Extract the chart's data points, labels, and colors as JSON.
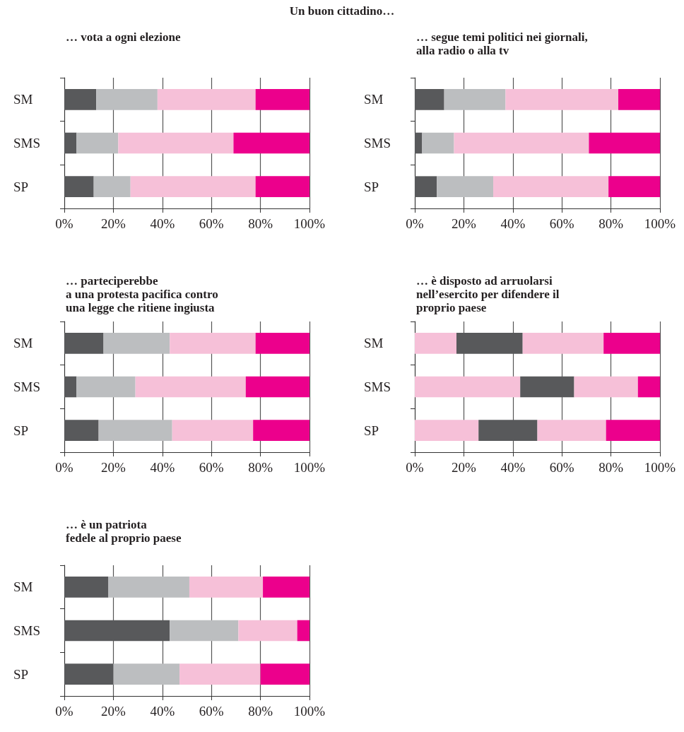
{
  "chart_data": [
    {
      "type": "bar",
      "title": "… vota a ogni elezione",
      "annotations": [
        "Un buon cittadino…"
      ],
      "orientation": "horizontal",
      "stacked": true,
      "grid": "x",
      "categories": [
        "SM",
        "SMS",
        "SP"
      ],
      "xlim": [
        0,
        100
      ],
      "xticks": [
        {
          "value": 0,
          "label": "0%"
        },
        {
          "value": 20,
          "label": "20%"
        },
        {
          "value": 40,
          "label": "40%"
        },
        {
          "value": 60,
          "label": "60%"
        },
        {
          "value": 80,
          "label": "80%"
        },
        {
          "value": 100,
          "label": "100%"
        }
      ],
      "series": [
        {
          "color": "#58595b",
          "values": [
            13,
            5,
            12
          ]
        },
        {
          "color": "#bcbec0",
          "values": [
            25,
            17,
            15
          ]
        },
        {
          "color": "#f6c0d8",
          "values": [
            40,
            47,
            51
          ]
        },
        {
          "color": "#ec008c",
          "values": [
            22,
            31,
            22
          ]
        }
      ]
    },
    {
      "type": "bar",
      "title": "… segue temi politici nei giornali,\nalla radio o alla tv",
      "orientation": "horizontal",
      "stacked": true,
      "grid": "x",
      "categories": [
        "SM",
        "SMS",
        "SP"
      ],
      "xlim": [
        0,
        100
      ],
      "xticks": [
        {
          "value": 0,
          "label": "0%"
        },
        {
          "value": 20,
          "label": "20%"
        },
        {
          "value": 40,
          "label": "40%"
        },
        {
          "value": 60,
          "label": "60%"
        },
        {
          "value": 80,
          "label": "80%"
        },
        {
          "value": 100,
          "label": "100%"
        }
      ],
      "series": [
        {
          "color": "#58595b",
          "values": [
            12,
            3,
            9
          ]
        },
        {
          "color": "#bcbec0",
          "values": [
            25,
            13,
            23
          ]
        },
        {
          "color": "#f6c0d8",
          "values": [
            46,
            55,
            47
          ]
        },
        {
          "color": "#ec008c",
          "values": [
            17,
            29,
            21
          ]
        }
      ]
    },
    {
      "type": "bar",
      "title": "… parteciperebbe\na una protesta pacifica contro\nuna legge che ritiene ingiusta",
      "orientation": "horizontal",
      "stacked": true,
      "grid": "x",
      "categories": [
        "SM",
        "SMS",
        "SP"
      ],
      "xlim": [
        0,
        100
      ],
      "xticks": [
        {
          "value": 0,
          "label": "0%"
        },
        {
          "value": 20,
          "label": "20%"
        },
        {
          "value": 40,
          "label": "40%"
        },
        {
          "value": 60,
          "label": "60%"
        },
        {
          "value": 80,
          "label": "80%"
        },
        {
          "value": 100,
          "label": "100%"
        }
      ],
      "series": [
        {
          "color": "#58595b",
          "values": [
            16,
            5,
            14
          ]
        },
        {
          "color": "#bcbec0",
          "values": [
            27,
            24,
            30
          ]
        },
        {
          "color": "#f6c0d8",
          "values": [
            35,
            45,
            33
          ]
        },
        {
          "color": "#ec008c",
          "values": [
            22,
            26,
            23
          ]
        }
      ]
    },
    {
      "type": "bar",
      "title": "… è disposto ad arruolarsi\nnell’esercito per difendere il\nproprio paese",
      "orientation": "horizontal",
      "stacked": true,
      "grid": "x",
      "categories": [
        "SM",
        "SMS",
        "SP"
      ],
      "xlim": [
        0,
        100
      ],
      "xticks": [
        {
          "value": 0,
          "label": "0%"
        },
        {
          "value": 20,
          "label": "20%"
        },
        {
          "value": 40,
          "label": "40%"
        },
        {
          "value": 60,
          "label": "60%"
        },
        {
          "value": 80,
          "label": "80%"
        },
        {
          "value": 100,
          "label": "100%"
        }
      ],
      "series": [
        {
          "color": "#f6c0d8",
          "values": [
            17,
            43,
            26
          ]
        },
        {
          "color": "#58595b",
          "values": [
            27,
            22,
            24
          ]
        },
        {
          "color": "#f6c0d8",
          "values": [
            33,
            26,
            28
          ]
        },
        {
          "color": "#ec008c",
          "values": [
            23,
            9,
            22
          ]
        }
      ]
    },
    {
      "type": "bar",
      "title": "… è un patriota\nfedele al proprio paese",
      "orientation": "horizontal",
      "stacked": true,
      "grid": "x",
      "categories": [
        "SM",
        "SMS",
        "SP"
      ],
      "xlim": [
        0,
        100
      ],
      "xticks": [
        {
          "value": 0,
          "label": "0%"
        },
        {
          "value": 20,
          "label": "20%"
        },
        {
          "value": 40,
          "label": "40%"
        },
        {
          "value": 60,
          "label": "60%"
        },
        {
          "value": 80,
          "label": "80%"
        },
        {
          "value": 100,
          "label": "100%"
        }
      ],
      "series": [
        {
          "color": "#58595b",
          "values": [
            18,
            43,
            20
          ]
        },
        {
          "color": "#bcbec0",
          "values": [
            33,
            28,
            27
          ]
        },
        {
          "color": "#f6c0d8",
          "values": [
            30,
            24,
            33
          ]
        },
        {
          "color": "#ec008c",
          "values": [
            19,
            5,
            20
          ]
        }
      ]
    }
  ]
}
